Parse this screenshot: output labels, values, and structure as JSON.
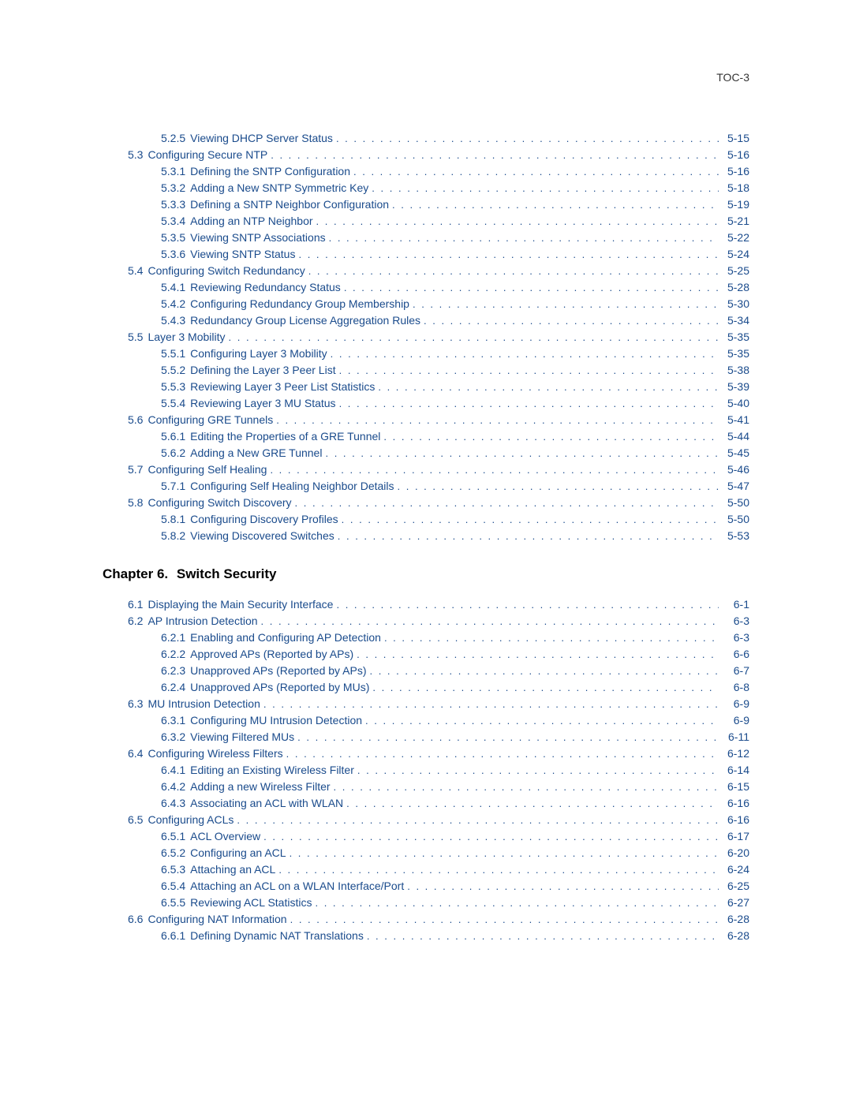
{
  "header": "TOC-3",
  "link_color": "#1a4b8c",
  "text_color": "#333333",
  "chapter2": {
    "label": "Chapter 6.",
    "title": "Switch Security"
  },
  "entries1": [
    {
      "indent": 2,
      "num": "5.2.5",
      "title": "Viewing DHCP Server Status",
      "page": "5-15"
    },
    {
      "indent": 1,
      "num": "5.3",
      "title": "Configuring Secure NTP",
      "page": "5-16"
    },
    {
      "indent": 2,
      "num": "5.3.1",
      "title": "Defining the SNTP Configuration",
      "page": "5-16"
    },
    {
      "indent": 2,
      "num": "5.3.2",
      "title": "Adding a New SNTP Symmetric Key",
      "page": "5-18"
    },
    {
      "indent": 2,
      "num": "5.3.3",
      "title": "Defining a SNTP Neighbor Configuration",
      "page": "5-19"
    },
    {
      "indent": 2,
      "num": "5.3.4",
      "title": "Adding an NTP Neighbor",
      "page": "5-21"
    },
    {
      "indent": 2,
      "num": "5.3.5",
      "title": "Viewing SNTP Associations",
      "page": "5-22"
    },
    {
      "indent": 2,
      "num": "5.3.6",
      "title": "Viewing SNTP Status",
      "page": "5-24"
    },
    {
      "indent": 1,
      "num": "5.4",
      "title": "Configuring Switch Redundancy",
      "page": "5-25"
    },
    {
      "indent": 2,
      "num": "5.4.1",
      "title": "Reviewing Redundancy Status",
      "page": "5-28"
    },
    {
      "indent": 2,
      "num": "5.4.2",
      "title": "Configuring Redundancy Group Membership",
      "page": "5-30"
    },
    {
      "indent": 2,
      "num": "5.4.3",
      "title": "Redundancy Group License Aggregation Rules",
      "page": "5-34"
    },
    {
      "indent": 1,
      "num": "5.5",
      "title": "Layer 3 Mobility",
      "page": "5-35"
    },
    {
      "indent": 2,
      "num": "5.5.1",
      "title": "Configuring Layer 3 Mobility",
      "page": "5-35"
    },
    {
      "indent": 2,
      "num": "5.5.2",
      "title": "Defining the Layer 3 Peer List",
      "page": "5-38"
    },
    {
      "indent": 2,
      "num": "5.5.3",
      "title": "Reviewing Layer 3 Peer List Statistics",
      "page": "5-39"
    },
    {
      "indent": 2,
      "num": "5.5.4",
      "title": "Reviewing Layer 3 MU Status",
      "page": "5-40"
    },
    {
      "indent": 1,
      "num": "5.6",
      "title": "Configuring GRE Tunnels",
      "page": "5-41"
    },
    {
      "indent": 2,
      "num": "5.6.1",
      "title": "Editing the Properties of a GRE Tunnel",
      "page": "5-44"
    },
    {
      "indent": 2,
      "num": "5.6.2",
      "title": "Adding a New GRE Tunnel",
      "page": "5-45"
    },
    {
      "indent": 1,
      "num": "5.7",
      "title": "Configuring Self Healing",
      "page": "5-46"
    },
    {
      "indent": 2,
      "num": "5.7.1",
      "title": "Configuring Self Healing Neighbor Details",
      "page": "5-47"
    },
    {
      "indent": 1,
      "num": "5.8",
      "title": "Configuring Switch Discovery",
      "page": "5-50"
    },
    {
      "indent": 2,
      "num": "5.8.1",
      "title": "Configuring Discovery Profiles",
      "page": "5-50"
    },
    {
      "indent": 2,
      "num": "5.8.2",
      "title": "Viewing Discovered Switches",
      "page": "5-53"
    }
  ],
  "entries2": [
    {
      "indent": 1,
      "num": "6.1",
      "title": "Displaying the Main Security Interface",
      "page": "6-1"
    },
    {
      "indent": 1,
      "num": "6.2",
      "title": "AP Intrusion Detection",
      "page": "6-3"
    },
    {
      "indent": 2,
      "num": "6.2.1",
      "title": "Enabling and Configuring AP Detection",
      "page": "6-3"
    },
    {
      "indent": 2,
      "num": "6.2.2",
      "title": "Approved APs (Reported by APs)",
      "page": "6-6"
    },
    {
      "indent": 2,
      "num": "6.2.3",
      "title": "Unapproved APs (Reported by APs)",
      "page": "6-7"
    },
    {
      "indent": 2,
      "num": "6.2.4",
      "title": "Unapproved APs (Reported by MUs)",
      "page": "6-8"
    },
    {
      "indent": 1,
      "num": "6.3",
      "title": "MU Intrusion Detection",
      "page": "6-9"
    },
    {
      "indent": 2,
      "num": "6.3.1",
      "title": "Configuring MU Intrusion Detection",
      "page": "6-9"
    },
    {
      "indent": 2,
      "num": "6.3.2",
      "title": "Viewing Filtered MUs",
      "page": "6-11"
    },
    {
      "indent": 1,
      "num": "6.4",
      "title": "Configuring Wireless Filters",
      "page": "6-12"
    },
    {
      "indent": 2,
      "num": "6.4.1",
      "title": "Editing an Existing Wireless Filter",
      "page": "6-14"
    },
    {
      "indent": 2,
      "num": "6.4.2",
      "title": "Adding a new Wireless Filter",
      "page": "6-15"
    },
    {
      "indent": 2,
      "num": "6.4.3",
      "title": "Associating an ACL with WLAN",
      "page": "6-16"
    },
    {
      "indent": 1,
      "num": "6.5",
      "title": "Configuring ACLs",
      "page": "6-16"
    },
    {
      "indent": 2,
      "num": "6.5.1",
      "title": "ACL Overview",
      "page": "6-17"
    },
    {
      "indent": 2,
      "num": "6.5.2",
      "title": "Configuring an ACL",
      "page": "6-20"
    },
    {
      "indent": 2,
      "num": "6.5.3",
      "title": "Attaching an ACL",
      "page": "6-24"
    },
    {
      "indent": 2,
      "num": "6.5.4",
      "title": "Attaching an ACL on a WLAN Interface/Port",
      "page": "6-25"
    },
    {
      "indent": 2,
      "num": "6.5.5",
      "title": "Reviewing ACL Statistics",
      "page": "6-27"
    },
    {
      "indent": 1,
      "num": "6.6",
      "title": "Configuring NAT Information",
      "page": "6-28"
    },
    {
      "indent": 2,
      "num": "6.6.1",
      "title": "Defining Dynamic NAT Translations",
      "page": "6-28"
    }
  ]
}
